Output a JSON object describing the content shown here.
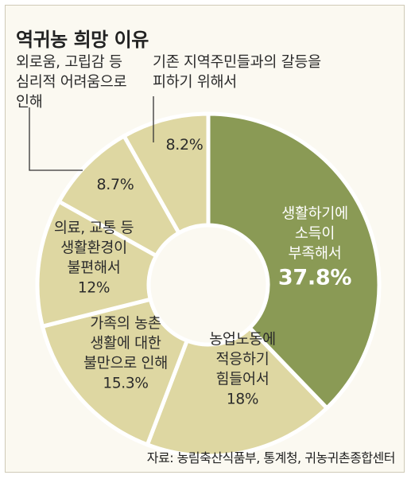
{
  "chart_data": {
    "type": "donut",
    "title": "역귀농 희망 이유",
    "source": "자료: 농림축산식품부, 통계청, 귀농귀촌종합센터",
    "slices": [
      {
        "label": [
          "생활하기에",
          "소득이",
          "부족해서"
        ],
        "value": 37.8,
        "display": "37.8%",
        "color": "#8a9a55",
        "text_color": "#ffffff"
      },
      {
        "label": [
          "농업노동에",
          "적응하기",
          "힘들어서"
        ],
        "value": 18,
        "display": "18%",
        "color": "#ded7a2",
        "text_color": "#2b2b2b"
      },
      {
        "label": [
          "가족의 농촌",
          "생활에 대한",
          "불만으로 인해"
        ],
        "value": 15.3,
        "display": "15.3%",
        "color": "#ded7a2",
        "text_color": "#2b2b2b"
      },
      {
        "label": [
          "의료, 교통 등",
          "생활환경이",
          "불편해서"
        ],
        "value": 12,
        "display": "12%",
        "color": "#ded7a2",
        "text_color": "#2b2b2b"
      },
      {
        "label": [
          "외로움, 고립감 등",
          "심리적 어려움으로",
          "인해"
        ],
        "value": 8.7,
        "display": "8.7%",
        "color": "#ded7a2",
        "text_color": "#2b2b2b"
      },
      {
        "label": [
          "기존 지역주민들과의 갈등을",
          "피하기 위해서"
        ],
        "value": 8.2,
        "display": "8.2%",
        "color": "#ded7a2",
        "text_color": "#2b2b2b"
      }
    ]
  }
}
